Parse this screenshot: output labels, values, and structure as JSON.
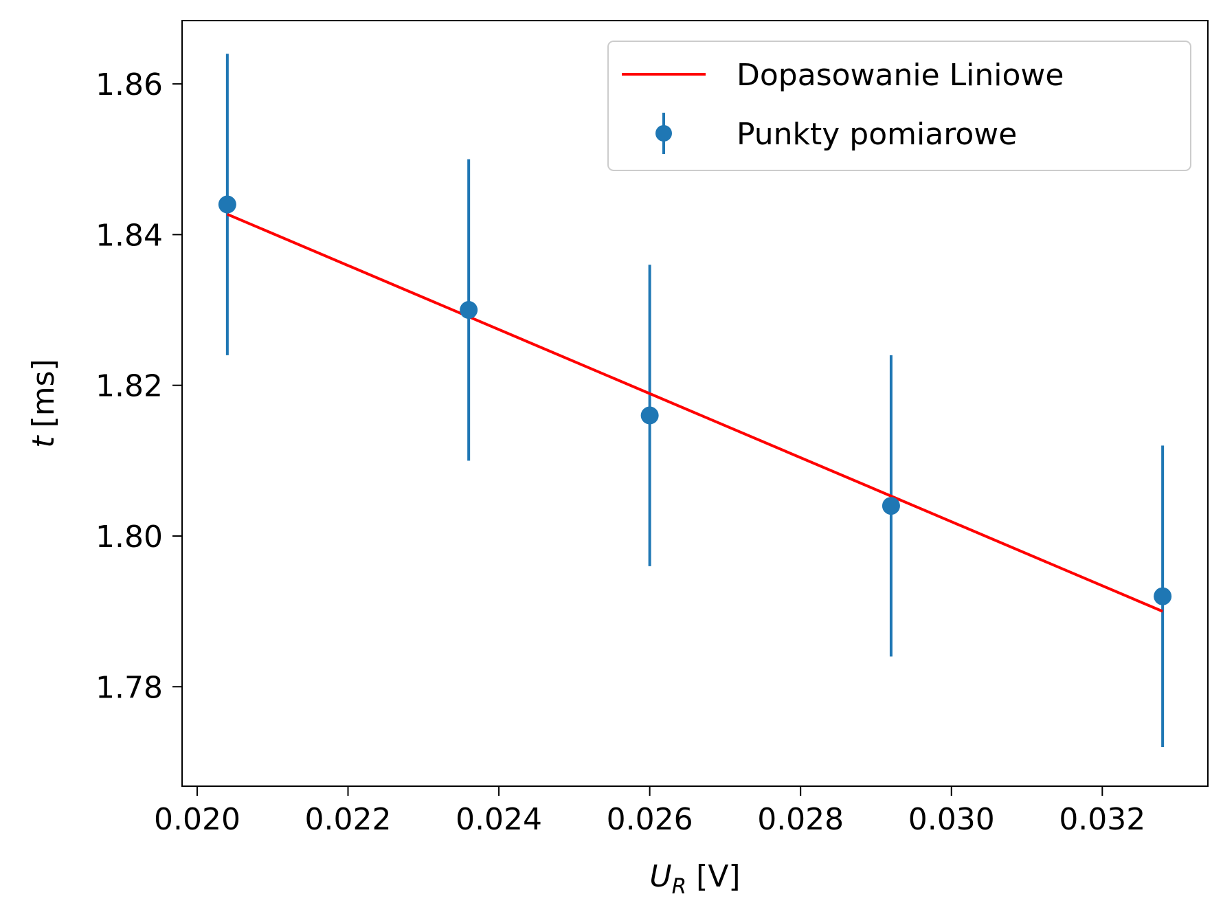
{
  "chart_data": {
    "type": "scatter",
    "xlabel": {
      "symbol": "U",
      "subscript": "R",
      "unit": "[V]"
    },
    "ylabel": {
      "symbol": "t",
      "unit": "[ms]"
    },
    "xlim": [
      0.0198,
      0.0334
    ],
    "ylim": [
      1.7668,
      1.8684
    ],
    "xticks": [
      0.02,
      0.022,
      0.024,
      0.026,
      0.028,
      0.03,
      0.032
    ],
    "xtick_labels": [
      "0.020",
      "0.022",
      "0.024",
      "0.026",
      "0.028",
      "0.030",
      "0.032"
    ],
    "yticks": [
      1.78,
      1.8,
      1.82,
      1.84,
      1.86
    ],
    "ytick_labels": [
      "1.78",
      "1.80",
      "1.82",
      "1.84",
      "1.86"
    ],
    "grid": false,
    "legend_position": "top-right",
    "series": [
      {
        "name": "Dopasowanie Liniowe",
        "kind": "line",
        "color": "#ff0000",
        "x": [
          0.0204,
          0.0328
        ],
        "y": [
          1.8427,
          1.79
        ]
      },
      {
        "name": "Punkty pomiarowe",
        "kind": "errorbar",
        "color": "#1f77b4",
        "x": [
          0.0204,
          0.0236,
          0.026,
          0.0292,
          0.0328
        ],
        "y": [
          1.844,
          1.83,
          1.816,
          1.804,
          1.792
        ],
        "yerr": [
          0.02,
          0.02,
          0.02,
          0.02,
          0.02
        ]
      }
    ]
  }
}
